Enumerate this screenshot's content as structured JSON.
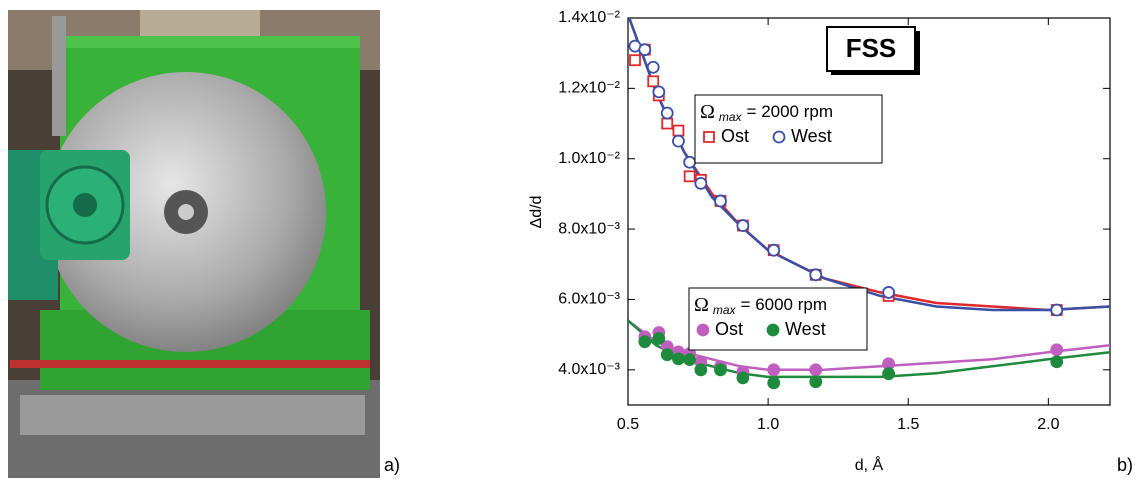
{
  "chart_data": {
    "type": "scatter",
    "title": "FSS",
    "x_label": "d, Å",
    "y_label": "Δd/d",
    "panel_labels": [
      "a)",
      "b)"
    ],
    "xlim": [
      0.5,
      2.22
    ],
    "ylim": [
      0.003,
      0.014
    ],
    "xticks": [
      0.5,
      {
        "value": 1,
        "label": "1.0"
      },
      1.5,
      {
        "value": 2,
        "label": "2.0"
      }
    ],
    "yticks": [
      {
        "value": 0.004,
        "label": "4.0x10⁻³"
      },
      {
        "value": 0.006,
        "label": "6.0x10⁻³"
      },
      {
        "value": 0.008,
        "label": "8.0x10⁻³"
      },
      {
        "value": 0.01,
        "label": "1.0x10⁻²"
      },
      {
        "value": 0.012,
        "label": "1.2x10⁻²"
      },
      {
        "value": 0.014,
        "label": "1.4x10⁻²"
      }
    ],
    "legend_groups": [
      {
        "symbol": "Ω",
        "subscript": "max",
        "text": "= 2000 rpm"
      },
      {
        "symbol": "Ω",
        "subscript": "max",
        "text": "= 6000 rpm"
      }
    ],
    "series": [
      {
        "name": "Ost",
        "group": 0,
        "color": "#e0282b",
        "marker": "square",
        "filled": false,
        "x": [
          0.525,
          0.56,
          0.59,
          0.61,
          0.64,
          0.68,
          0.72,
          0.76,
          0.83,
          0.91,
          1.02,
          1.17,
          1.43,
          2.03
        ],
        "values": [
          0.0128,
          0.0131,
          0.0122,
          0.0118,
          0.011,
          0.0108,
          0.0095,
          0.0094,
          0.0088,
          0.0081,
          0.0074,
          0.0067,
          0.0061,
          0.0057
        ]
      },
      {
        "name": "West",
        "group": 0,
        "color": "#3a4fa8",
        "marker": "circle",
        "filled": false,
        "x": [
          0.525,
          0.56,
          0.59,
          0.61,
          0.64,
          0.68,
          0.72,
          0.76,
          0.83,
          0.91,
          1.02,
          1.17,
          1.43,
          2.03
        ],
        "values": [
          0.0132,
          0.0131,
          0.0126,
          0.0119,
          0.0113,
          0.0105,
          0.0099,
          0.0093,
          0.0088,
          0.0081,
          0.0074,
          0.0067,
          0.0062,
          0.0057
        ]
      },
      {
        "name": "Ost",
        "group": 1,
        "color": "#c05fc0",
        "marker": "circle",
        "filled": true,
        "x": [
          0.56,
          0.61,
          0.64,
          0.68,
          0.72,
          0.76,
          0.83,
          0.91,
          1.02,
          1.17,
          1.43,
          2.03
        ],
        "values": [
          0.00494,
          0.00506,
          0.00466,
          0.00451,
          0.00446,
          0.00423,
          0.00409,
          0.00394,
          0.004,
          0.004,
          0.00417,
          0.00457
        ]
      },
      {
        "name": "West",
        "group": 1,
        "color": "#1e8a3c",
        "marker": "circle",
        "filled": true,
        "x": [
          0.56,
          0.61,
          0.64,
          0.68,
          0.72,
          0.76,
          0.83,
          0.91,
          1.02,
          1.17,
          1.43,
          2.03
        ],
        "values": [
          0.0048,
          0.00489,
          0.00443,
          0.00431,
          0.00429,
          0.004,
          0.004,
          0.00377,
          0.00363,
          0.00366,
          0.00389,
          0.00423
        ]
      }
    ],
    "fits": [
      {
        "color": "#e0282b",
        "x": [
          0.5,
          0.6,
          0.7,
          0.8,
          0.9,
          1.0,
          1.2,
          1.4,
          1.6,
          1.8,
          2.0,
          2.22
        ],
        "values": [
          0.0141,
          0.0119,
          0.0102,
          0.009,
          0.0081,
          0.0074,
          0.0066,
          0.0062,
          0.0059,
          0.0058,
          0.0057,
          0.0058
        ]
      },
      {
        "color": "#3a4fa8",
        "x": [
          0.5,
          0.6,
          0.7,
          0.8,
          0.9,
          1.0,
          1.2,
          1.4,
          1.6,
          1.8,
          2.0,
          2.22
        ],
        "values": [
          0.0141,
          0.0119,
          0.0102,
          0.0089,
          0.0081,
          0.0074,
          0.0066,
          0.0061,
          0.0058,
          0.0057,
          0.0057,
          0.0058
        ]
      },
      {
        "color": "#c05fc0",
        "x": [
          0.5,
          0.6,
          0.7,
          0.8,
          0.9,
          1.0,
          1.2,
          1.4,
          1.6,
          1.8,
          2.0,
          2.22
        ],
        "values": [
          0.0054,
          0.0048,
          0.0045,
          0.0043,
          0.0041,
          0.004,
          0.004,
          0.0041,
          0.0042,
          0.0043,
          0.0045,
          0.0047
        ]
      },
      {
        "color": "#1e8a3c",
        "x": [
          0.5,
          0.6,
          0.7,
          0.8,
          0.9,
          1.0,
          1.2,
          1.4,
          1.6,
          1.8,
          2.0,
          2.22
        ],
        "values": [
          0.0054,
          0.0047,
          0.0043,
          0.0041,
          0.0039,
          0.0038,
          0.0038,
          0.0038,
          0.0039,
          0.0041,
          0.0043,
          0.0045
        ]
      }
    ]
  }
}
